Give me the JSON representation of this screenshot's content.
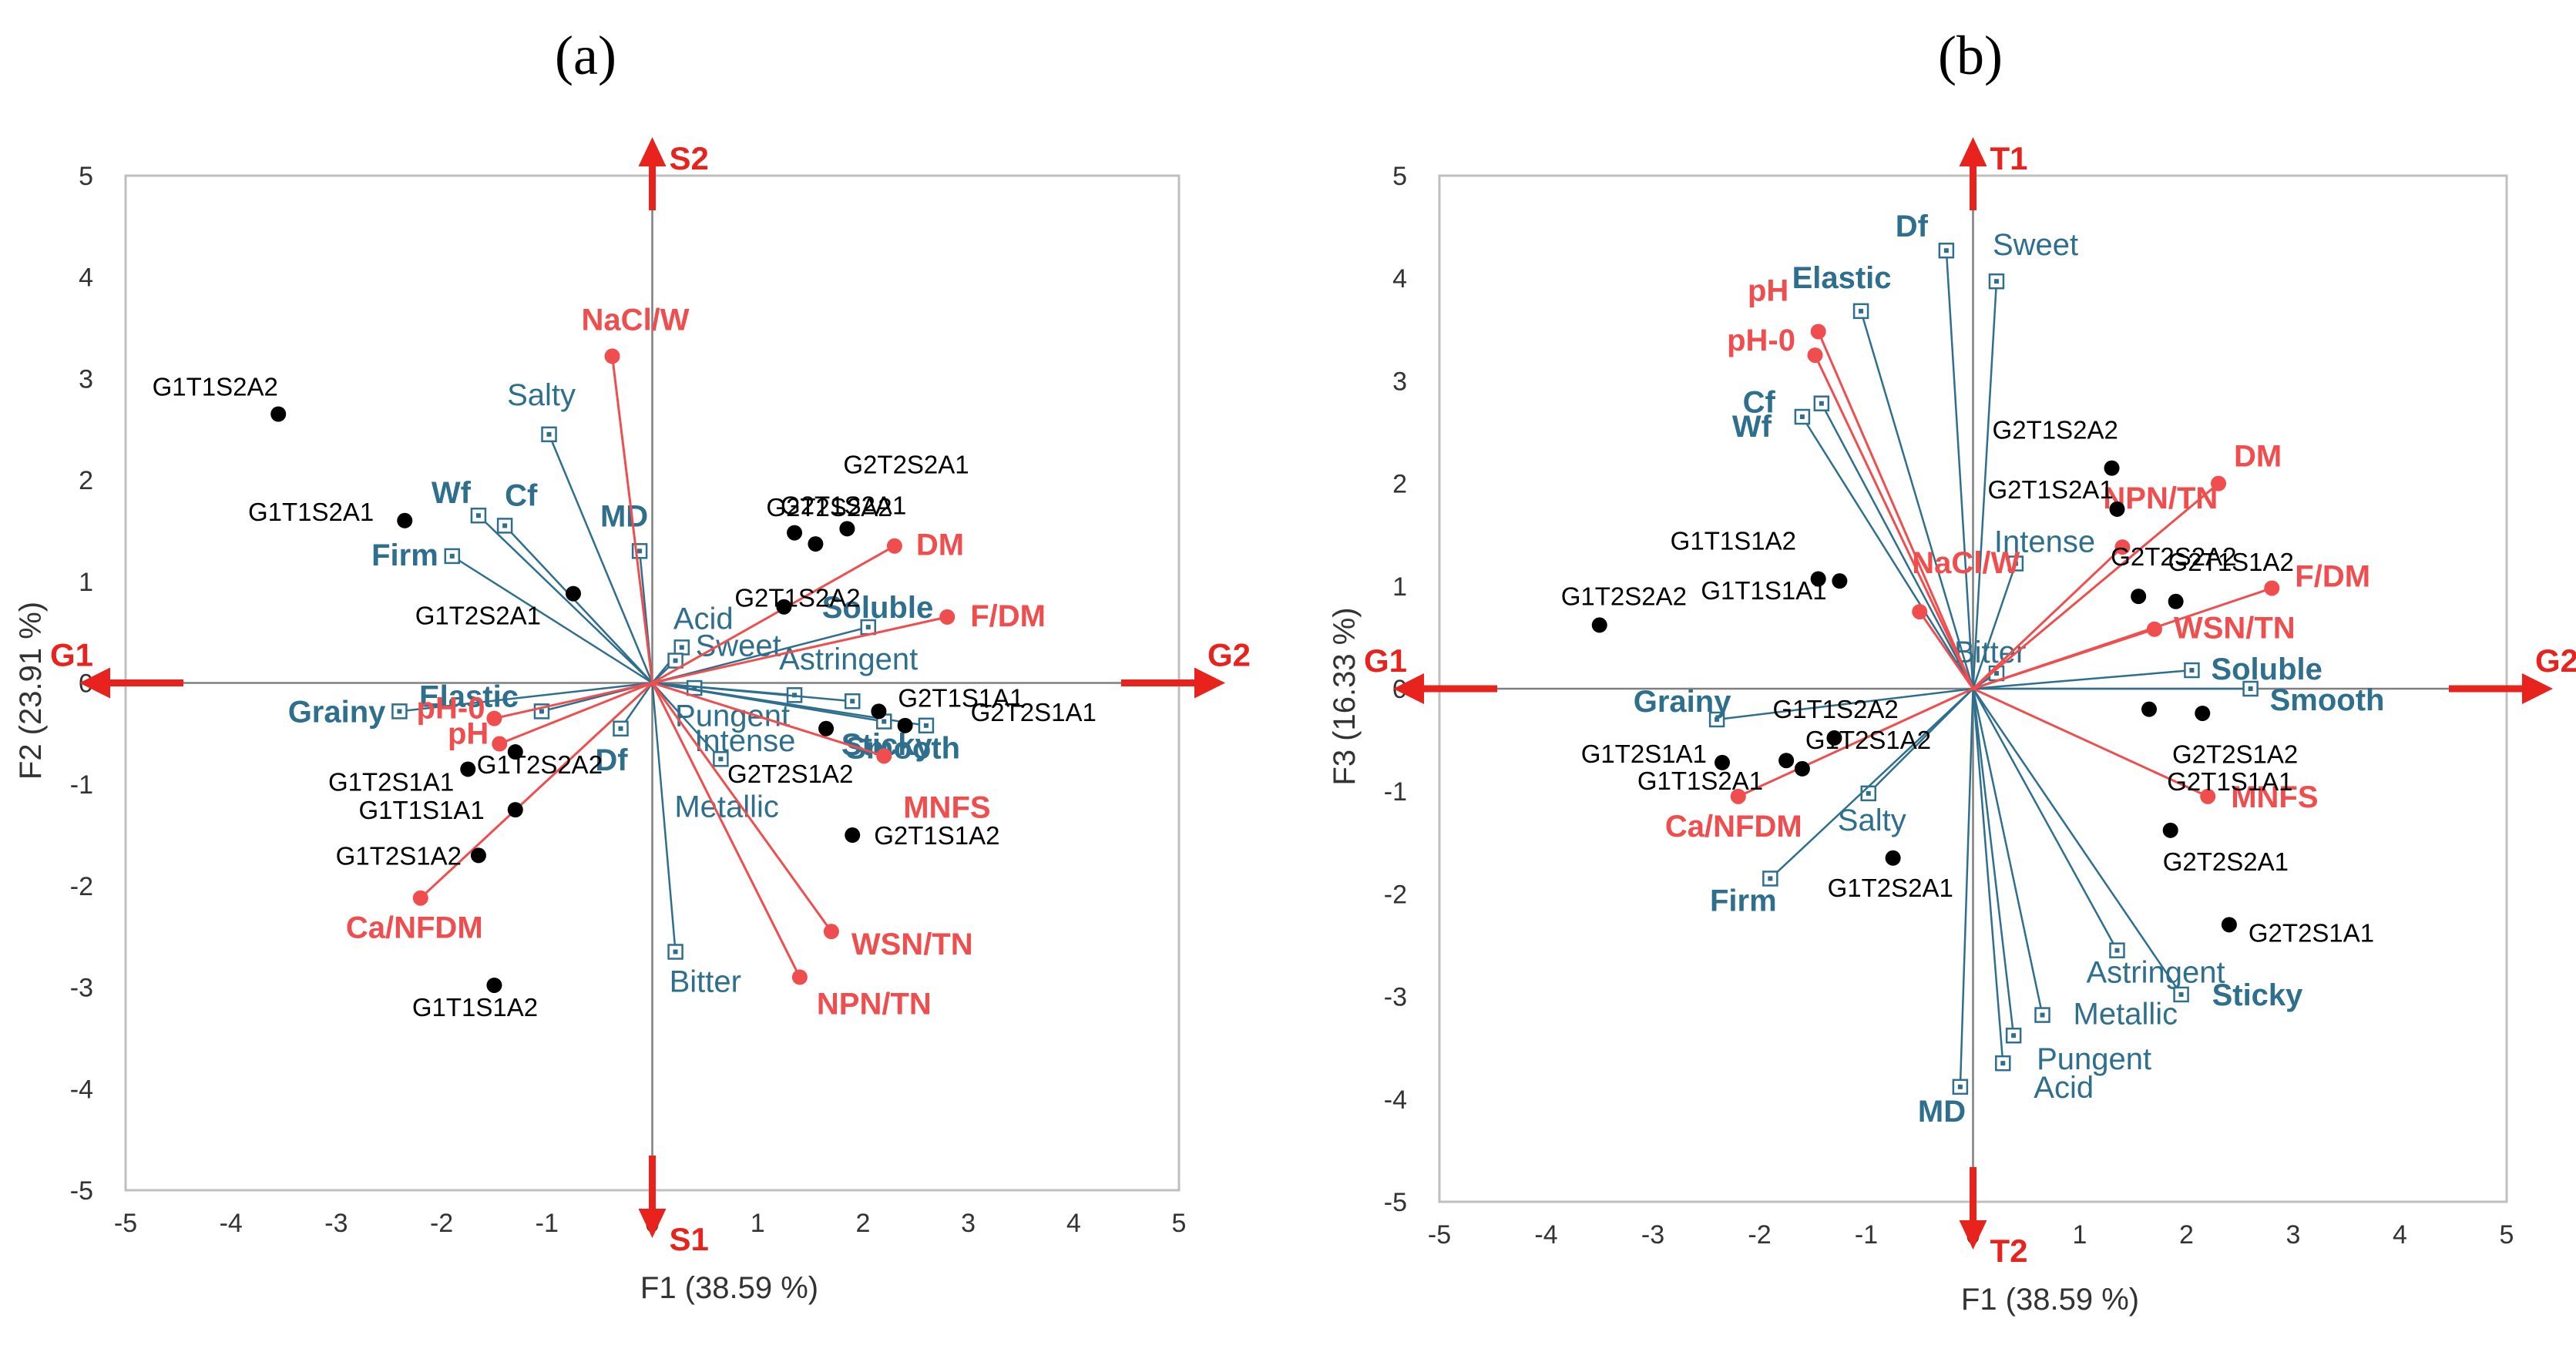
{
  "colors": {
    "red": "#f04e4e",
    "blue": "#2e6f8e",
    "arrow": "#e8231d",
    "obs": "#000000",
    "frame": "#bfbfbf",
    "axis": "#7f7f7f"
  },
  "chart_data": [
    {
      "type": "scatter",
      "panel": "(a)",
      "xlabel": "F1 (38.59 %)",
      "ylabel": "F2 (23.91 %)",
      "xlim": [
        -5,
        5
      ],
      "ylim": [
        -5,
        5
      ],
      "xticks": [
        "-5",
        "-4",
        "-3",
        "-2",
        "-1",
        "0",
        "1",
        "2",
        "3",
        "4",
        "5"
      ],
      "yticks": [
        "5",
        "4",
        "3",
        "2",
        "1",
        "0",
        "-1",
        "-2",
        "-3",
        "-4",
        "-5"
      ],
      "directions": {
        "left": "G1",
        "right": "G2",
        "top": "S2",
        "bottom": "S1"
      },
      "observations": [
        {
          "label": "G1T1S2A2",
          "x": -3.55,
          "y": 2.65
        },
        {
          "label": "G1T1S2A1",
          "x": -2.35,
          "y": 1.6
        },
        {
          "label": "G1T2S2A1",
          "x": -0.75,
          "y": 0.88
        },
        {
          "label": "G2T2S2A1",
          "x": 1.85,
          "y": 1.52
        },
        {
          "label": "G2T1S2A1",
          "x": 1.35,
          "y": 1.48
        },
        {
          "label": "G2T2S2A2",
          "x": 1.55,
          "y": 1.37
        },
        {
          "label": "G2T1S2A2",
          "x": 1.25,
          "y": 0.75
        },
        {
          "label": "G2T1S1A1",
          "x": 2.15,
          "y": -0.28
        },
        {
          "label": "G2T2S1A1",
          "x": 2.4,
          "y": -0.42
        },
        {
          "label": "G2T2S1A2",
          "x": 1.65,
          "y": -0.45
        },
        {
          "label": "G2T1S1A2",
          "x": 1.9,
          "y": -1.5
        },
        {
          "label": "G1T2S1A1",
          "x": -1.75,
          "y": -0.85
        },
        {
          "label": "G1T2S2A2",
          "x": -1.3,
          "y": -0.68
        },
        {
          "label": "G1T1S1A1",
          "x": -1.3,
          "y": -1.25
        },
        {
          "label": "G1T2S1A2",
          "x": -1.65,
          "y": -1.7
        },
        {
          "label": "G1T1S1A2",
          "x": -1.5,
          "y": -2.98
        }
      ],
      "red_variables": [
        {
          "label": "NaCl/W",
          "x": -0.38,
          "y": 3.22
        },
        {
          "label": "DM",
          "x": 2.3,
          "y": 1.35
        },
        {
          "label": "F/DM",
          "x": 2.8,
          "y": 0.65
        },
        {
          "label": "pH-0",
          "x": -1.5,
          "y": -0.35
        },
        {
          "label": "pH",
          "x": -1.45,
          "y": -0.6
        },
        {
          "label": "MNFS",
          "x": 2.2,
          "y": -0.72
        },
        {
          "label": "Ca/NFDM",
          "x": -2.2,
          "y": -2.12
        },
        {
          "label": "WSN/TN",
          "x": 1.7,
          "y": -2.45
        },
        {
          "label": "NPN/TN",
          "x": 1.4,
          "y": -2.9
        }
      ],
      "blue_variables": [
        {
          "label": "Salty",
          "x": -0.98,
          "y": 2.45,
          "bold": false
        },
        {
          "label": "Wf",
          "x": -1.65,
          "y": 1.65,
          "bold": true
        },
        {
          "label": "Cf",
          "x": -1.4,
          "y": 1.55,
          "bold": true
        },
        {
          "label": "MD",
          "x": -0.12,
          "y": 1.3,
          "bold": true
        },
        {
          "label": "Firm",
          "x": -1.9,
          "y": 1.25,
          "bold": true
        },
        {
          "label": "Acid",
          "x": 0.28,
          "y": 0.35,
          "bold": false
        },
        {
          "label": "Sweet",
          "x": 0.22,
          "y": 0.22,
          "bold": false
        },
        {
          "label": "Soluble",
          "x": 2.05,
          "y": 0.55,
          "bold": true
        },
        {
          "label": "Elastic",
          "x": -1.05,
          "y": -0.28,
          "bold": true
        },
        {
          "label": "Grainy",
          "x": -2.4,
          "y": -0.28,
          "bold": true
        },
        {
          "label": "Astringent",
          "x": 0.4,
          "y": -0.05,
          "bold": false
        },
        {
          "label": "Pungent",
          "x": 1.35,
          "y": -0.12,
          "bold": false
        },
        {
          "label": "Intense",
          "x": 1.9,
          "y": -0.18,
          "bold": false
        },
        {
          "label": "Sticky",
          "x": 2.6,
          "y": -0.42,
          "bold": true
        },
        {
          "label": "Smooth",
          "x": 2.2,
          "y": -0.38,
          "bold": true
        },
        {
          "label": "Df",
          "x": -0.3,
          "y": -0.45,
          "bold": true
        },
        {
          "label": "Metallic",
          "x": 0.65,
          "y": -0.75,
          "bold": false
        },
        {
          "label": "Bitter",
          "x": 0.22,
          "y": -2.65,
          "bold": false
        }
      ]
    },
    {
      "type": "scatter",
      "panel": "(b)",
      "xlabel": "F1 (38.59 %)",
      "ylabel": "F3 (16.33 %)",
      "xlim": [
        -5,
        5
      ],
      "ylim": [
        -5,
        5
      ],
      "xticks": [
        "-5",
        "-4",
        "-3",
        "-2",
        "-1",
        "0",
        "1",
        "2",
        "3",
        "4",
        "5"
      ],
      "yticks": [
        "5",
        "4",
        "3",
        "2",
        "1",
        "0",
        "-1",
        "-2",
        "-3",
        "-4",
        "-5"
      ],
      "directions": {
        "left": "G1",
        "right": "G2",
        "top": "T1",
        "bottom": "T2"
      },
      "observations": [
        {
          "label": "G1T2S2A2",
          "x": -3.5,
          "y": 0.62
        },
        {
          "label": "G1T1S1A2",
          "x": -1.45,
          "y": 1.07
        },
        {
          "label": "G1T1S1A1",
          "x": -1.25,
          "y": 1.05
        },
        {
          "label": "G2T1S2A2",
          "x": 1.3,
          "y": 2.15
        },
        {
          "label": "G2T1S2A1",
          "x": 1.35,
          "y": 1.75
        },
        {
          "label": "G2T2S2A2",
          "x": 1.55,
          "y": 0.9
        },
        {
          "label": "G2T1S1A2",
          "x": 1.9,
          "y": 0.85
        },
        {
          "label": "G2T2S1A2",
          "x": 1.65,
          "y": -0.2
        },
        {
          "label": "G2T1S1A1",
          "x": 2.15,
          "y": -0.24
        },
        {
          "label": "G2T2S2A1",
          "x": 1.85,
          "y": -1.38
        },
        {
          "label": "G2T2S1A1",
          "x": 2.4,
          "y": -2.3
        },
        {
          "label": "G1T2S1A1",
          "x": -2.35,
          "y": -0.72
        },
        {
          "label": "G1T1S2A1",
          "x": -1.75,
          "y": -0.7
        },
        {
          "label": "G1T2S1A2",
          "x": -1.6,
          "y": -0.78
        },
        {
          "label": "G1T1S2A2",
          "x": -1.3,
          "y": -0.48
        },
        {
          "label": "G1T2S2A1",
          "x": -0.75,
          "y": -1.65
        }
      ],
      "red_variables": [
        {
          "label": "pH",
          "x": -1.45,
          "y": 3.48
        },
        {
          "label": "pH-0",
          "x": -1.48,
          "y": 3.25
        },
        {
          "label": "NaCl/W",
          "x": -0.5,
          "y": 0.75
        },
        {
          "label": "DM",
          "x": 2.3,
          "y": 2.0
        },
        {
          "label": "NPN/TN",
          "x": 1.4,
          "y": 1.38
        },
        {
          "label": "F/DM",
          "x": 2.8,
          "y": 0.98
        },
        {
          "label": "WSN/TN",
          "x": 1.7,
          "y": 0.58
        },
        {
          "label": "MNFS",
          "x": 2.2,
          "y": -1.05
        },
        {
          "label": "Ca/NFDM",
          "x": -2.2,
          "y": -1.05
        }
      ],
      "blue_variables": [
        {
          "label": "Df",
          "x": -0.25,
          "y": 4.27,
          "bold": true
        },
        {
          "label": "Sweet",
          "x": 0.22,
          "y": 3.97,
          "bold": false
        },
        {
          "label": "Elastic",
          "x": -1.05,
          "y": 3.68,
          "bold": true
        },
        {
          "label": "Cf",
          "x": -1.42,
          "y": 2.78,
          "bold": true
        },
        {
          "label": "Wf",
          "x": -1.6,
          "y": 2.65,
          "bold": true
        },
        {
          "label": "Intense",
          "x": 0.4,
          "y": 1.22,
          "bold": false
        },
        {
          "label": "Bitter",
          "x": 0.22,
          "y": 0.15,
          "bold": false
        },
        {
          "label": "Soluble",
          "x": 2.05,
          "y": 0.18,
          "bold": true
        },
        {
          "label": "Smooth",
          "x": 2.6,
          "y": 0.0,
          "bold": true
        },
        {
          "label": "Grainy",
          "x": -2.4,
          "y": -0.3,
          "bold": true
        },
        {
          "label": "Salty",
          "x": -0.98,
          "y": -1.02,
          "bold": false
        },
        {
          "label": "Firm",
          "x": -1.9,
          "y": -1.85,
          "bold": true
        },
        {
          "label": "Astringent",
          "x": 1.35,
          "y": -2.55,
          "bold": false
        },
        {
          "label": "Sticky",
          "x": 1.95,
          "y": -2.98,
          "bold": true
        },
        {
          "label": "Metallic",
          "x": 0.65,
          "y": -3.18,
          "bold": false
        },
        {
          "label": "Pungent",
          "x": 0.38,
          "y": -3.38,
          "bold": false
        },
        {
          "label": "Acid",
          "x": 0.28,
          "y": -3.65,
          "bold": false
        },
        {
          "label": "MD",
          "x": -0.12,
          "y": -3.88,
          "bold": true
        }
      ]
    }
  ]
}
